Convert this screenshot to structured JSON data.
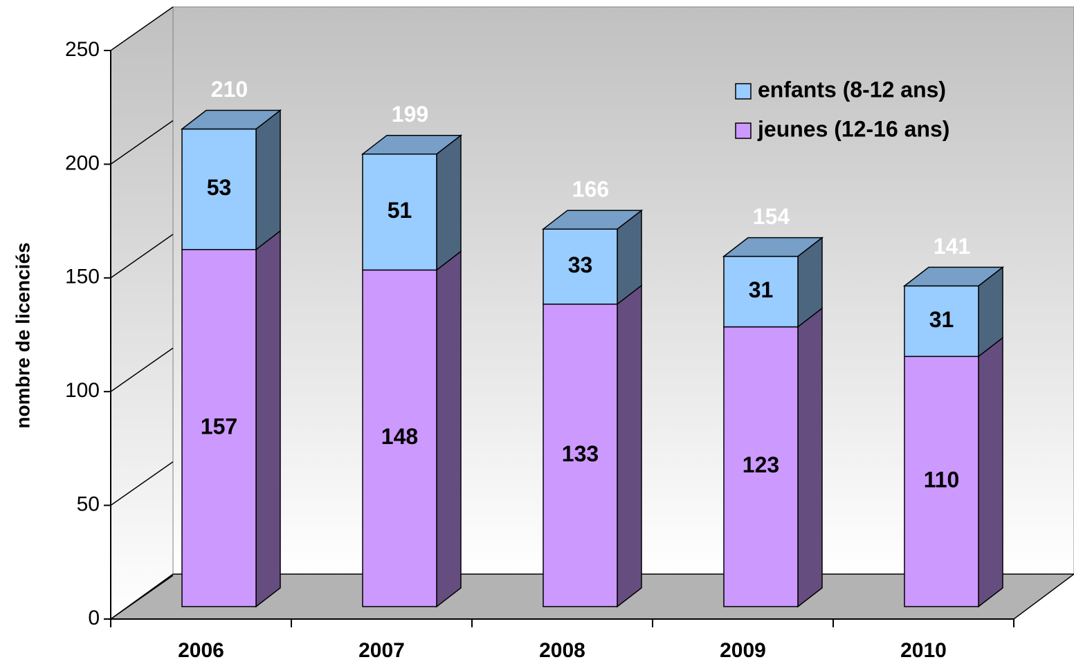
{
  "chart_data": {
    "type": "bar3d_stacked",
    "y_label": "nombre de licenciés",
    "categories": [
      "2006",
      "2007",
      "2008",
      "2009",
      "2010"
    ],
    "series": [
      {
        "name": "jeunes (12-16 ans)",
        "color": "#cc99ff",
        "values": [
          157,
          148,
          133,
          123,
          110
        ]
      },
      {
        "name": "enfants (8-12 ans)",
        "color": "#99ccff",
        "values": [
          53,
          51,
          33,
          31,
          31
        ]
      }
    ],
    "totals": [
      210,
      199,
      166,
      154,
      141
    ],
    "ylim": [
      0,
      250
    ],
    "yticks": [
      0,
      50,
      100,
      150,
      200,
      250
    ]
  }
}
